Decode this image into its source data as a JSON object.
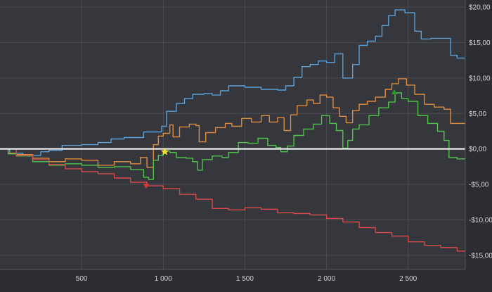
{
  "colors": {
    "background": "#2b2d33",
    "plot_background": "#35373d",
    "grid": "#4a4c52",
    "tick_text": "#d2d4d8",
    "zero_line": "#ffffff"
  },
  "chart_data": {
    "type": "line",
    "grid": true,
    "x_axis": {
      "min": 0,
      "max": 2850,
      "ticks": [
        500,
        1000,
        1500,
        2000,
        2500
      ],
      "tick_labels": [
        "500",
        "1 000",
        "1 500",
        "2 000",
        "2 500"
      ]
    },
    "y_axis": {
      "position": "right",
      "min": -17,
      "max": 21,
      "ticks": [
        20,
        15,
        10,
        5,
        0,
        -5,
        -10,
        -15
      ],
      "tick_labels": [
        "$20,00",
        "$15,00",
        "$10,00",
        "$5,00",
        "$0,00",
        "-$5,00",
        "-$10,00",
        "-$15,00"
      ]
    },
    "reference_line": {
      "y": 0,
      "color": "#ffffff"
    },
    "series": [
      {
        "color": "#5aa0d8",
        "points": [
          [
            0,
            0
          ],
          [
            60,
            -0.6
          ],
          [
            140,
            -0.9
          ],
          [
            250,
            -0.4
          ],
          [
            300,
            -0.2
          ],
          [
            380,
            0.5
          ],
          [
            500,
            0.6
          ],
          [
            600,
            0.9
          ],
          [
            680,
            1.4
          ],
          [
            760,
            1.6
          ],
          [
            880,
            2.4
          ],
          [
            990,
            3.2
          ],
          [
            1020,
            5.3
          ],
          [
            1080,
            6.4
          ],
          [
            1130,
            7.1
          ],
          [
            1180,
            7.7
          ],
          [
            1250,
            7.8
          ],
          [
            1300,
            7.6
          ],
          [
            1350,
            8.2
          ],
          [
            1400,
            8.9
          ],
          [
            1500,
            8.7
          ],
          [
            1600,
            8.4
          ],
          [
            1700,
            8.3
          ],
          [
            1750,
            8.9
          ],
          [
            1800,
            10.1
          ],
          [
            1850,
            11.6
          ],
          [
            1900,
            11.9
          ],
          [
            1950,
            12.4
          ],
          [
            2000,
            12.2
          ],
          [
            2050,
            13.4
          ],
          [
            2100,
            10.0
          ],
          [
            2160,
            11.9
          ],
          [
            2200,
            14.6
          ],
          [
            2250,
            15.2
          ],
          [
            2300,
            15.9
          ],
          [
            2340,
            17.4
          ],
          [
            2380,
            18.8
          ],
          [
            2420,
            19.6
          ],
          [
            2480,
            19.2
          ],
          [
            2540,
            16.6
          ],
          [
            2580,
            15.5
          ],
          [
            2640,
            15.6
          ],
          [
            2700,
            15.6
          ],
          [
            2760,
            13.2
          ],
          [
            2800,
            12.8
          ],
          [
            2850,
            12.8
          ]
        ]
      },
      {
        "color": "#e08c3f",
        "points": [
          [
            0,
            0
          ],
          [
            50,
            -0.6
          ],
          [
            100,
            -0.8
          ],
          [
            200,
            -1.3
          ],
          [
            300,
            -1.8
          ],
          [
            400,
            -1.4
          ],
          [
            500,
            -1.6
          ],
          [
            600,
            -2.3
          ],
          [
            700,
            -1.8
          ],
          [
            800,
            -2.1
          ],
          [
            860,
            -1.2
          ],
          [
            900,
            -2.6
          ],
          [
            940,
            0.6
          ],
          [
            970,
            1.8
          ],
          [
            1000,
            2.2
          ],
          [
            1040,
            3.4
          ],
          [
            1060,
            1.7
          ],
          [
            1100,
            3.1
          ],
          [
            1160,
            3.5
          ],
          [
            1200,
            3.3
          ],
          [
            1220,
            1.0
          ],
          [
            1260,
            2.3
          ],
          [
            1320,
            3.0
          ],
          [
            1380,
            3.6
          ],
          [
            1420,
            3.2
          ],
          [
            1480,
            4.3
          ],
          [
            1540,
            3.8
          ],
          [
            1600,
            4.7
          ],
          [
            1650,
            3.8
          ],
          [
            1700,
            4.4
          ],
          [
            1740,
            2.6
          ],
          [
            1780,
            4.8
          ],
          [
            1820,
            6.1
          ],
          [
            1880,
            6.9
          ],
          [
            1920,
            6.4
          ],
          [
            1960,
            7.6
          ],
          [
            2000,
            7.3
          ],
          [
            2040,
            5.8
          ],
          [
            2080,
            4.6
          ],
          [
            2120,
            3.7
          ],
          [
            2160,
            5.4
          ],
          [
            2200,
            6.3
          ],
          [
            2250,
            6.7
          ],
          [
            2300,
            7.3
          ],
          [
            2360,
            8.4
          ],
          [
            2400,
            9.2
          ],
          [
            2440,
            9.9
          ],
          [
            2490,
            9.0
          ],
          [
            2540,
            7.7
          ],
          [
            2600,
            6.3
          ],
          [
            2660,
            5.9
          ],
          [
            2720,
            5.6
          ],
          [
            2760,
            3.6
          ],
          [
            2800,
            3.6
          ],
          [
            2850,
            3.6
          ]
        ]
      },
      {
        "color": "#4fc44a",
        "points": [
          [
            0,
            0
          ],
          [
            50,
            -0.7
          ],
          [
            100,
            -1.0
          ],
          [
            200,
            -1.8
          ],
          [
            300,
            -2.3
          ],
          [
            400,
            -2.1
          ],
          [
            500,
            -2.3
          ],
          [
            600,
            -2.6
          ],
          [
            700,
            -2.5
          ],
          [
            800,
            -2.9
          ],
          [
            880,
            -4.0
          ],
          [
            910,
            -4.3
          ],
          [
            940,
            -1.6
          ],
          [
            970,
            -0.9
          ],
          [
            1000,
            -0.3
          ],
          [
            1040,
            -0.5
          ],
          [
            1080,
            -1.2
          ],
          [
            1140,
            -1.3
          ],
          [
            1180,
            -1.8
          ],
          [
            1210,
            -3.0
          ],
          [
            1240,
            -1.5
          ],
          [
            1300,
            -1.0
          ],
          [
            1360,
            -1.2
          ],
          [
            1400,
            -0.5
          ],
          [
            1460,
            0.9
          ],
          [
            1520,
            0.8
          ],
          [
            1580,
            1.5
          ],
          [
            1640,
            0.5
          ],
          [
            1690,
            0.2
          ],
          [
            1720,
            -0.4
          ],
          [
            1760,
            0.4
          ],
          [
            1800,
            1.9
          ],
          [
            1860,
            2.8
          ],
          [
            1920,
            3.5
          ],
          [
            1970,
            4.7
          ],
          [
            2020,
            3.6
          ],
          [
            2060,
            2.6
          ],
          [
            2100,
            0.1
          ],
          [
            2130,
            1.2
          ],
          [
            2160,
            2.8
          ],
          [
            2200,
            3.4
          ],
          [
            2260,
            4.7
          ],
          [
            2320,
            5.8
          ],
          [
            2380,
            6.6
          ],
          [
            2420,
            7.9
          ],
          [
            2460,
            7.1
          ],
          [
            2500,
            6.7
          ],
          [
            2560,
            4.7
          ],
          [
            2620,
            3.6
          ],
          [
            2680,
            2.5
          ],
          [
            2720,
            1.2
          ],
          [
            2750,
            -1.2
          ],
          [
            2800,
            -1.4
          ],
          [
            2850,
            -1.4
          ]
        ]
      },
      {
        "color": "#d9494a",
        "points": [
          [
            0,
            0
          ],
          [
            100,
            -0.9
          ],
          [
            200,
            -1.5
          ],
          [
            300,
            -2.2
          ],
          [
            400,
            -2.8
          ],
          [
            500,
            -3.2
          ],
          [
            600,
            -3.5
          ],
          [
            700,
            -4.1
          ],
          [
            800,
            -4.7
          ],
          [
            900,
            -5.2
          ],
          [
            1000,
            -5.6
          ],
          [
            1100,
            -6.4
          ],
          [
            1200,
            -7.1
          ],
          [
            1300,
            -8.4
          ],
          [
            1400,
            -8.6
          ],
          [
            1500,
            -8.3
          ],
          [
            1600,
            -8.5
          ],
          [
            1700,
            -9.0
          ],
          [
            1800,
            -9.1
          ],
          [
            1900,
            -9.3
          ],
          [
            2000,
            -9.8
          ],
          [
            2100,
            -10.3
          ],
          [
            2200,
            -11.1
          ],
          [
            2300,
            -11.8
          ],
          [
            2400,
            -12.3
          ],
          [
            2500,
            -13.1
          ],
          [
            2600,
            -13.6
          ],
          [
            2700,
            -13.9
          ],
          [
            2800,
            -14.4
          ],
          [
            2850,
            -14.3
          ]
        ]
      }
    ],
    "markers": [
      {
        "shape": "star",
        "x": 1010,
        "y": -0.4,
        "color": "#f2e13a"
      },
      {
        "shape": "triangle-down",
        "x": 895,
        "y": -5.2,
        "color": "#e03a3a"
      },
      {
        "shape": "triangle-up",
        "x": 2415,
        "y": 8.0,
        "color": "#2e9a2e"
      }
    ]
  }
}
